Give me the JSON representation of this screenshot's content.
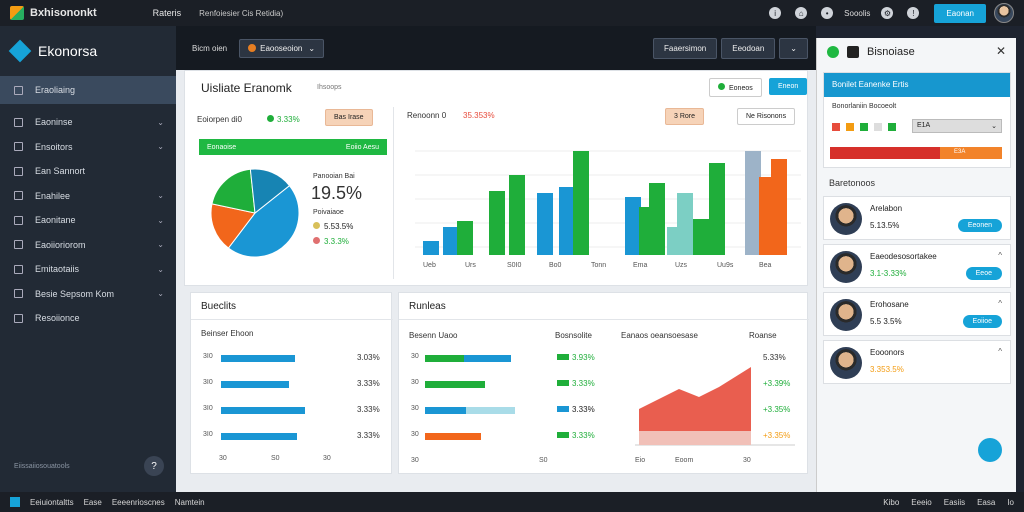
{
  "topbar": {
    "app_title": "Bxhisononkt",
    "menu": "Rateris",
    "crumb": "Renfoiesier Cis Retidia)",
    "link1": "Sooolis",
    "button": "Eaonan"
  },
  "sidebar": {
    "brand": "Ekonorsa",
    "items": [
      {
        "label": "Eraoliaing",
        "chev": ""
      },
      {
        "label": "Eaoninse",
        "chev": "⌄"
      },
      {
        "label": "Ensoitors",
        "chev": "⌄"
      },
      {
        "label": "Ean Sannort",
        "chev": ""
      },
      {
        "label": "Enahilee",
        "chev": "⌄"
      },
      {
        "label": "Eaonitane",
        "chev": "⌄"
      },
      {
        "label": "Eaoiioriorom",
        "chev": "⌄"
      },
      {
        "label": "Emitaotaiis",
        "chev": "⌄"
      },
      {
        "label": "Besie Sepsom Kom",
        "chev": "⌄"
      },
      {
        "label": "Resoiionce",
        "chev": ""
      }
    ],
    "footer": "Eiissaiiosouatools",
    "help": "?"
  },
  "mainbar": {
    "label": "Bicm oien",
    "dropdown": "Eaooseoion",
    "btn1": "Faaersimon",
    "btn2": "Eeodoan"
  },
  "dashboard": {
    "title": "Uisliate Eranomk",
    "subtitle": "Ihsoops",
    "btn_filter": "Eoneos",
    "btn_blue": "Eneon"
  },
  "pie_panel": {
    "label": "Eoiorpen di0",
    "value": "3.33%",
    "badge": "Bas Irase",
    "green_left": "Eonaoise",
    "green_right": "Eoiio Aesu",
    "big_label": "Panooian Bai",
    "big_value": "19.5%",
    "legend_title": "Poivaiaoe",
    "legend1": "5.53.5%",
    "legend2": "3.3.3%",
    "colors": {
      "blue": "#1a96d4",
      "orange": "#f2661b",
      "green": "#1fae3a",
      "teal": "#1784b3"
    }
  },
  "bar_panel": {
    "label": "Renoonn 0",
    "value": "35.353%",
    "btn1": "3 Rore",
    "btn2": "Ne Risonons",
    "xlabels": [
      "Ueb",
      "Urs",
      "S0I0",
      "Bo0",
      "Tonn",
      "Ema",
      "Uzs",
      "Uu9s",
      "Bea"
    ]
  },
  "left_bottom": {
    "title": "Bueclits",
    "sub": "Beinser Ehoon",
    "pcts": [
      "3.03%",
      "3.33%",
      "3.33%",
      "3.33%"
    ],
    "ylabels": [
      "3I0",
      "3I0",
      "3I0",
      "3I0"
    ],
    "xlabels": [
      "30",
      "S0",
      "30"
    ]
  },
  "right_bottom": {
    "title": "Runleas",
    "sub1": "Besenn Uaoo",
    "sub2": "Bosnsolite",
    "sub3": "Eanaos oeansoesase",
    "sub4": "Roanse",
    "pcts_a": [
      "3.93%",
      "3.33%",
      "3.33%",
      "3.33%"
    ],
    "pcts_b": [
      "5.33%",
      "+3.39%",
      "+3.35%",
      "+3.35%"
    ],
    "xlabels": [
      "30",
      "S0",
      "Eio",
      "Eoom",
      "30"
    ]
  },
  "right_panel": {
    "title": "Bisnoiase",
    "close": "✕",
    "card_title": "Bonilet Eanenke Ertis",
    "card_sub": "Bonorlaniin Bocoeolt",
    "card_select": "E1A",
    "card_bar": "E3A",
    "section": "Baretonoos",
    "contacts": [
      {
        "name": "Arelabon",
        "value": "5.13.5%",
        "btn": "Eeonen",
        "color": "#222"
      },
      {
        "name": "Eaeodesosortakee",
        "value": "3.1-3.33%",
        "btn": "Eeoe",
        "color": "#1fae3a"
      },
      {
        "name": "Erohosane",
        "value": "5.5 3.5%",
        "btn": "Eoiioe",
        "color": "#222"
      },
      {
        "name": "Eooonors",
        "value": "3.353.5%",
        "btn": "",
        "color": "#f39c12"
      }
    ]
  },
  "bottombar": {
    "items": [
      "Eeiuiontaltts",
      "Ease",
      "Eeeenrioscnes",
      "Namtein"
    ],
    "right": [
      "Kibo",
      "Eeeio",
      "Easiis",
      "Easa",
      "Io"
    ]
  }
}
